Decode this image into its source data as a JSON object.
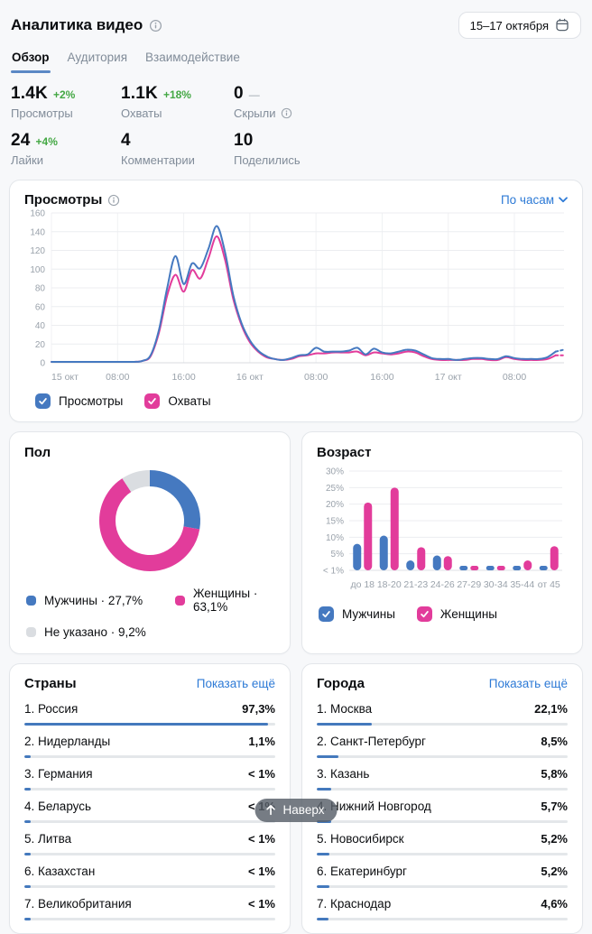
{
  "header": {
    "title": "Аналитика видео",
    "date_range": "15–17 октября"
  },
  "tabs": [
    {
      "label": "Обзор",
      "active": true
    },
    {
      "label": "Аудитория",
      "active": false
    },
    {
      "label": "Взаимодействие",
      "active": false
    }
  ],
  "stats": [
    {
      "value": "1.4K",
      "delta": "+2%",
      "delta_type": "positive",
      "label": "Просмотры",
      "info": false
    },
    {
      "value": "1.1K",
      "delta": "+18%",
      "delta_type": "positive",
      "label": "Охваты",
      "info": false
    },
    {
      "value": "0",
      "delta": "—",
      "delta_type": "neutral",
      "label": "Скрыли",
      "info": true
    },
    {
      "value": "24",
      "delta": "+4%",
      "delta_type": "positive",
      "label": "Лайки",
      "info": false
    },
    {
      "value": "4",
      "delta": "",
      "delta_type": "none",
      "label": "Комментарии",
      "info": false
    },
    {
      "value": "10",
      "delta": "",
      "delta_type": "none",
      "label": "Поделились",
      "info": false
    }
  ],
  "colors": {
    "blue": "#4579c0",
    "pink": "#e23c9b",
    "gray": "#dadde1",
    "green": "#44a844",
    "link": "#2d7ad6",
    "grid": "#ecedf0",
    "axis_text": "#9aa2ab"
  },
  "icons": {
    "info": "info-circle",
    "calendar": "calendar",
    "chevron_down": "chevron-down",
    "check": "checkmark",
    "arrow_up": "arrow-up"
  },
  "back_to_top": {
    "label": "Наверх"
  },
  "chart_data": [
    {
      "id": "views_over_time",
      "type": "line",
      "title": "Просмотры",
      "mode_selector": "По часам",
      "x_unit": "hours since 15 окт 00:00",
      "x_ticks": [
        {
          "h": 0,
          "label": "15 окт"
        },
        {
          "h": 8,
          "label": "08:00"
        },
        {
          "h": 16,
          "label": "16:00"
        },
        {
          "h": 24,
          "label": "16 окт"
        },
        {
          "h": 32,
          "label": "08:00"
        },
        {
          "h": 40,
          "label": "16:00"
        },
        {
          "h": 48,
          "label": "17 окт"
        },
        {
          "h": 56,
          "label": "08:00"
        }
      ],
      "ylim": [
        0,
        160
      ],
      "y_ticks": [
        0,
        20,
        40,
        60,
        80,
        100,
        120,
        140,
        160
      ],
      "grid": true,
      "legend_position": "bottom",
      "dashed_tail": true,
      "series": [
        {
          "name": "Просмотры",
          "color": "#4579c0",
          "checked": true,
          "values": [
            1,
            1,
            1,
            1,
            1,
            1,
            1,
            1,
            1,
            1,
            1,
            2,
            8,
            35,
            80,
            114,
            84,
            106,
            101,
            122,
            146,
            118,
            72,
            42,
            24,
            13,
            7,
            4,
            3,
            5,
            8,
            9,
            16,
            12,
            12,
            12,
            13,
            16,
            9,
            15,
            11,
            10,
            12,
            14,
            13,
            9,
            5,
            4,
            4,
            3,
            4,
            5,
            5,
            4,
            4,
            7,
            5,
            4,
            4,
            4,
            6,
            12,
            14
          ]
        },
        {
          "name": "Охваты",
          "color": "#e23c9b",
          "checked": true,
          "values": [
            1,
            1,
            1,
            1,
            1,
            1,
            1,
            1,
            1,
            1,
            1,
            2,
            7,
            32,
            72,
            94,
            76,
            99,
            90,
            112,
            135,
            110,
            68,
            40,
            22,
            12,
            6,
            4,
            3,
            4,
            7,
            8,
            10,
            10,
            11,
            11,
            11,
            12,
            8,
            11,
            10,
            9,
            10,
            12,
            11,
            7,
            4,
            3,
            3,
            3,
            3,
            4,
            4,
            3,
            3,
            6,
            4,
            3,
            3,
            3,
            4,
            8,
            8
          ]
        }
      ]
    },
    {
      "id": "gender",
      "type": "pie",
      "title": "Пол",
      "donut": true,
      "start_angle_deg": 0,
      "clockwise": true,
      "segments": [
        {
          "label": "Мужчины",
          "value": 27.7,
          "display": "27,7%",
          "color": "#4579c0"
        },
        {
          "label": "Женщины",
          "value": 63.1,
          "display": "63,1%",
          "color": "#e23c9b"
        },
        {
          "label": "Не указано",
          "value": 9.2,
          "display": "9,2%",
          "color": "#dadde1"
        }
      ],
      "legend_separator": " · "
    },
    {
      "id": "age",
      "type": "bar",
      "title": "Возраст",
      "categories": [
        "до 18",
        "18-20",
        "21-23",
        "24-26",
        "27-29",
        "30-34",
        "35-44",
        "от 45"
      ],
      "series": [
        {
          "name": "Мужчины",
          "color": "#4579c0",
          "checked": true,
          "values": [
            8,
            10.5,
            3,
            4.5,
            0.7,
            0.6,
            1.2,
            1.2
          ]
        },
        {
          "name": "Женщины",
          "color": "#e23c9b",
          "checked": true,
          "values": [
            20.5,
            25,
            7,
            4.3,
            1.0,
            0.5,
            3,
            7.3
          ]
        }
      ],
      "ylim": [
        0,
        30
      ],
      "y_tick_labels": [
        "< 1%",
        "5%",
        "10%",
        "15%",
        "20%",
        "25%",
        "30%"
      ],
      "grid": true,
      "legend_position": "bottom"
    },
    {
      "id": "countries",
      "type": "table",
      "title": "Страны",
      "show_more": "Показать ещё",
      "rows": [
        {
          "rank": "1.",
          "label": "Россия",
          "value": "97,3%",
          "pct": 97.3
        },
        {
          "rank": "2.",
          "label": "Нидерланды",
          "value": "1,1%",
          "pct": 1.1
        },
        {
          "rank": "3.",
          "label": "Германия",
          "value": "< 1%",
          "pct": 0.9
        },
        {
          "rank": "4.",
          "label": "Беларусь",
          "value": "< 1%",
          "pct": 0.9
        },
        {
          "rank": "5.",
          "label": "Литва",
          "value": "< 1%",
          "pct": 0.9
        },
        {
          "rank": "6.",
          "label": "Казахстан",
          "value": "< 1%",
          "pct": 0.9
        },
        {
          "rank": "7.",
          "label": "Великобритания",
          "value": "< 1%",
          "pct": 0.9
        }
      ]
    },
    {
      "id": "cities",
      "type": "table",
      "title": "Города",
      "show_more": "Показать ещё",
      "rows": [
        {
          "rank": "1.",
          "label": "Москва",
          "value": "22,1%",
          "pct": 22.1
        },
        {
          "rank": "2.",
          "label": "Санкт-Петербург",
          "value": "8,5%",
          "pct": 8.5
        },
        {
          "rank": "3.",
          "label": "Казань",
          "value": "5,8%",
          "pct": 5.8
        },
        {
          "rank": "4.",
          "label": "Нижний Новгород",
          "value": "5,7%",
          "pct": 5.7
        },
        {
          "rank": "5.",
          "label": "Новосибирск",
          "value": "5,2%",
          "pct": 5.2
        },
        {
          "rank": "6.",
          "label": "Екатеринбург",
          "value": "5,2%",
          "pct": 5.2
        },
        {
          "rank": "7.",
          "label": "Краснодар",
          "value": "4,6%",
          "pct": 4.6
        }
      ]
    }
  ]
}
